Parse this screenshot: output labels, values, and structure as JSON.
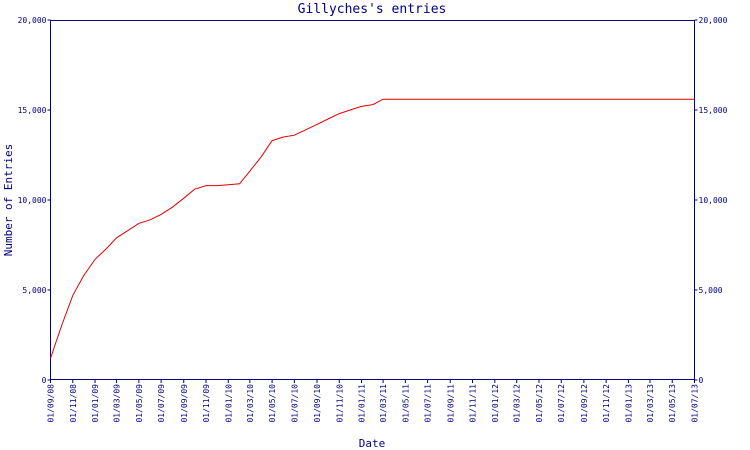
{
  "chart_data": {
    "type": "line",
    "title": "Gillyches's entries",
    "xlabel": "Date",
    "ylabel": "Number of Entries",
    "ylim": [
      0,
      20000
    ],
    "yticks": [
      0,
      5000,
      10000,
      15000,
      20000
    ],
    "ytick_labels": [
      "0",
      "5,000",
      "10,000",
      "15,000",
      "20,000"
    ],
    "xlim": [
      "2008-09-01",
      "2013-07-01"
    ],
    "xtick_labels": [
      "01/09/08",
      "01/11/08",
      "01/01/09",
      "01/03/09",
      "01/05/09",
      "01/07/09",
      "01/09/09",
      "01/11/09",
      "01/01/10",
      "01/03/10",
      "01/05/10",
      "01/07/10",
      "01/09/10",
      "01/11/10",
      "01/01/11",
      "01/03/11",
      "01/05/11",
      "01/07/11",
      "01/09/11",
      "01/11/11",
      "01/01/12",
      "01/03/12",
      "01/05/12",
      "01/07/12",
      "01/09/12",
      "01/11/12",
      "01/01/13",
      "01/03/13",
      "01/05/13",
      "01/07/13"
    ],
    "xtick_dates": [
      "2008-09-01",
      "2008-11-01",
      "2009-01-01",
      "2009-03-01",
      "2009-05-01",
      "2009-07-01",
      "2009-09-01",
      "2009-11-01",
      "2010-01-01",
      "2010-03-01",
      "2010-05-01",
      "2010-07-01",
      "2010-09-01",
      "2010-11-01",
      "2011-01-01",
      "2011-03-01",
      "2011-05-01",
      "2011-07-01",
      "2011-09-01",
      "2011-11-01",
      "2012-01-01",
      "2012-03-01",
      "2012-05-01",
      "2012-07-01",
      "2012-09-01",
      "2012-11-01",
      "2013-01-01",
      "2013-03-01",
      "2013-05-01",
      "2013-07-01"
    ],
    "grid": false,
    "series_color": "#e00000",
    "axis_color": "#000080",
    "series": [
      {
        "x": [
          "2008-09-01",
          "2008-10-01",
          "2008-11-01",
          "2008-12-01",
          "2009-01-01",
          "2009-02-01",
          "2009-03-01",
          "2009-04-01",
          "2009-05-01",
          "2009-06-01",
          "2009-07-01",
          "2009-08-01",
          "2009-09-01",
          "2009-10-01",
          "2009-11-01",
          "2009-12-01",
          "2010-01-01",
          "2010-02-01",
          "2010-03-01",
          "2010-04-01",
          "2010-05-01",
          "2010-06-01",
          "2010-07-01",
          "2010-08-01",
          "2010-09-01",
          "2010-10-01",
          "2010-11-01",
          "2010-12-01",
          "2011-01-01",
          "2011-02-01",
          "2011-03-01",
          "2011-04-01",
          "2011-05-01",
          "2011-07-01",
          "2011-09-01",
          "2011-11-01",
          "2012-01-01",
          "2012-03-01",
          "2012-05-01",
          "2012-07-01",
          "2012-09-01",
          "2012-11-01",
          "2013-01-01",
          "2013-03-01",
          "2013-05-01",
          "2013-07-01"
        ],
        "y": [
          1200,
          3000,
          4700,
          5800,
          6700,
          7300,
          7900,
          8300,
          8700,
          8900,
          9200,
          9600,
          10100,
          10600,
          10800,
          10800,
          10850,
          10900,
          11600,
          12400,
          13300,
          13500,
          13600,
          13900,
          14200,
          14500,
          14800,
          15000,
          15200,
          15300,
          15600,
          15600,
          15600,
          15600,
          15600,
          15600,
          15600,
          15600,
          15600,
          15600,
          15600,
          15600,
          15600,
          15600,
          15600,
          15600
        ]
      }
    ]
  }
}
